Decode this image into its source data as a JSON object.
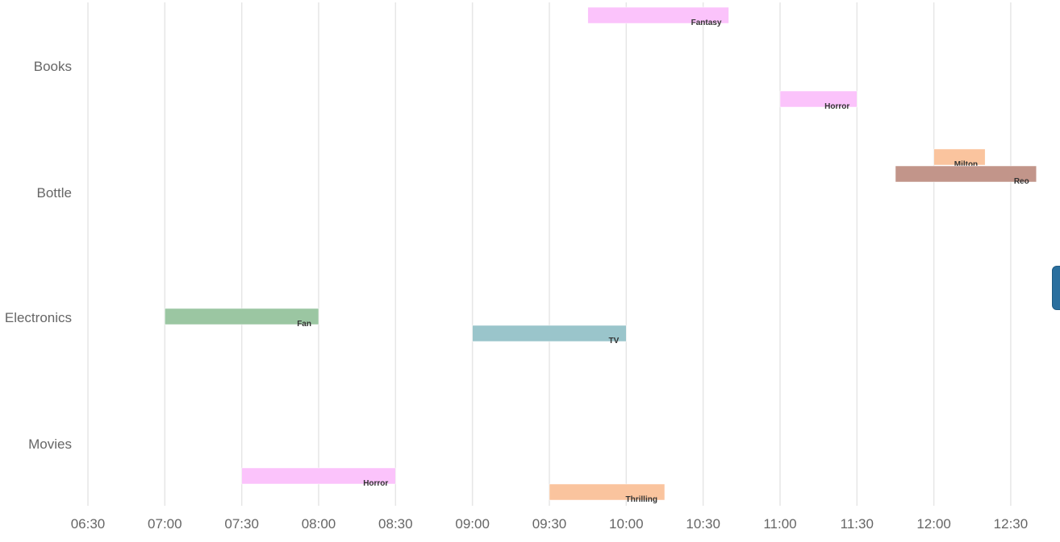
{
  "chart_data": {
    "type": "timeline",
    "categories": [
      "Books",
      "Bottle",
      "Electronics",
      "Movies"
    ],
    "x_ticks": [
      "06:30",
      "07:00",
      "07:30",
      "08:00",
      "08:30",
      "09:00",
      "09:30",
      "10:00",
      "10:30",
      "11:00",
      "11:30",
      "12:00",
      "12:30"
    ],
    "xlim": [
      "06:30",
      "12:40"
    ],
    "grid": "vertical",
    "tasks": [
      {
        "category": "Books",
        "label": "Fantasy",
        "start": "09:45",
        "end": "10:40",
        "color": "#fbc3fb"
      },
      {
        "category": "Books",
        "label": "Horror",
        "start": "11:00",
        "end": "11:30",
        "color": "#fbc3fb"
      },
      {
        "category": "Bottle",
        "label": "Milton",
        "start": "12:00",
        "end": "12:20",
        "color": "#fac49e"
      },
      {
        "category": "Bottle",
        "label": "Reo",
        "start": "11:45",
        "end": "12:40",
        "color": "#c2958a"
      },
      {
        "category": "Electronics",
        "label": "Fan",
        "start": "07:00",
        "end": "08:00",
        "color": "#9bc6a2"
      },
      {
        "category": "Electronics",
        "label": "TV",
        "start": "09:00",
        "end": "10:00",
        "color": "#9ac5cb"
      },
      {
        "category": "Movies",
        "label": "Horror",
        "start": "07:30",
        "end": "08:30",
        "color": "#fbc3fb"
      },
      {
        "category": "Movies",
        "label": "Thrilling",
        "start": "09:30",
        "end": "10:15",
        "color": "#fac49e"
      }
    ]
  }
}
